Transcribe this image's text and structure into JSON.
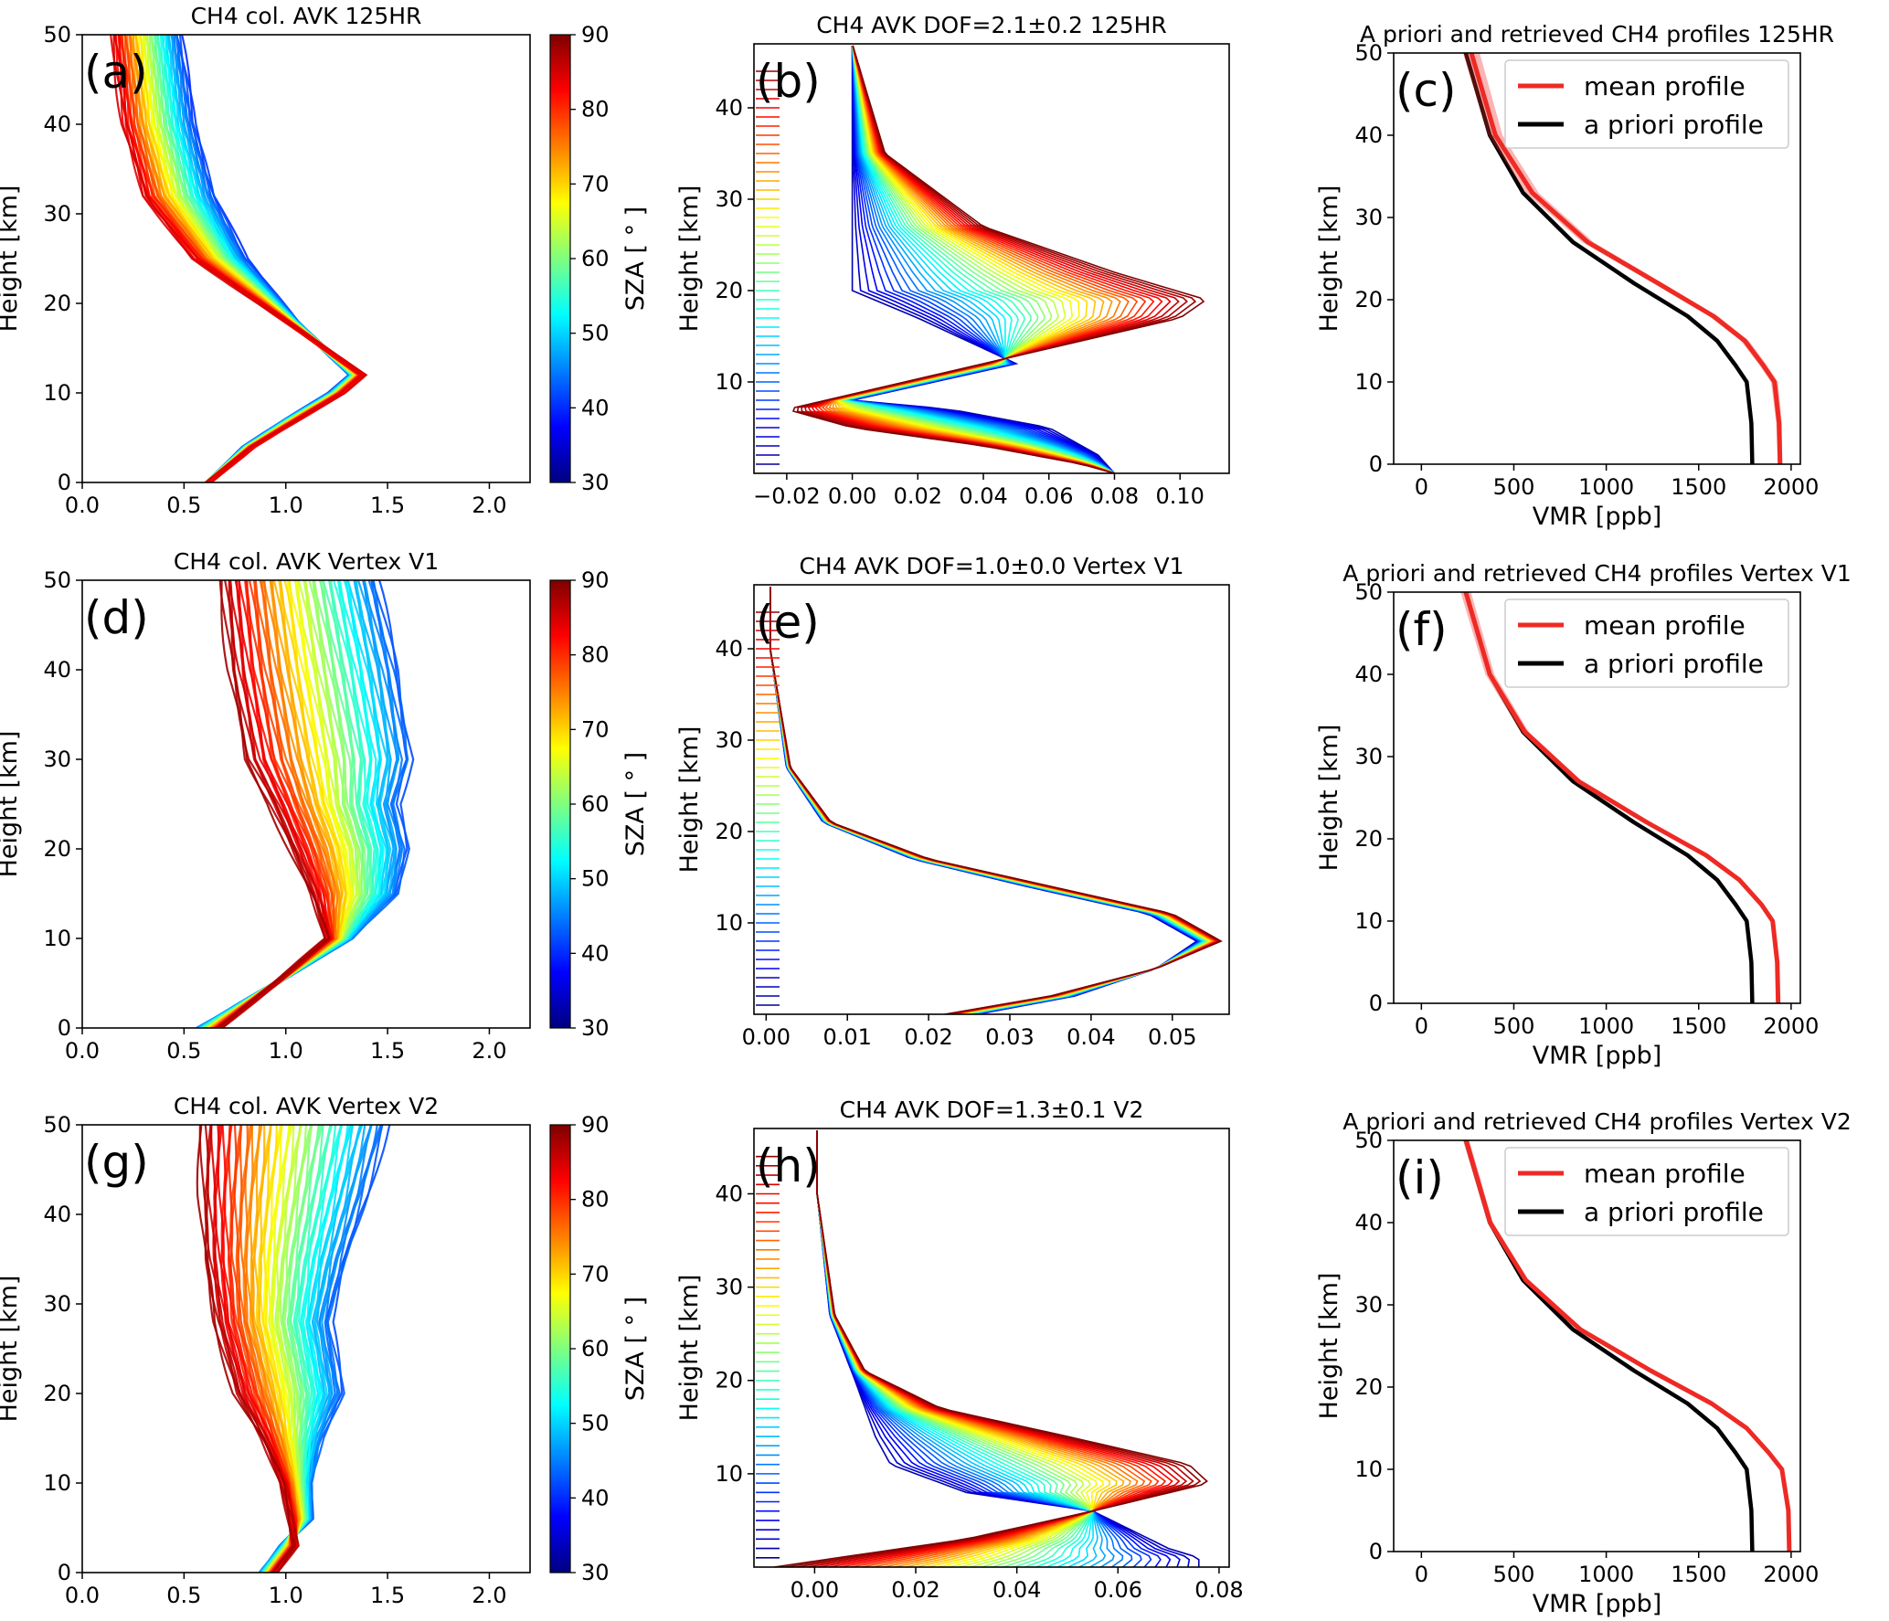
{
  "figure": {
    "colors": {
      "jet": [
        "#00007f",
        "#0000ff",
        "#007fff",
        "#00ffff",
        "#7fff7f",
        "#ffff00",
        "#ff7f00",
        "#ff0000",
        "#7f0000"
      ],
      "mean_profile": "#ee2a24",
      "apriori_profile": "#000000"
    },
    "colorbar": {
      "label": "SZA [ $^\\circ$ ]",
      "label_display": "SZA [ ° ]",
      "range": [
        30,
        90
      ],
      "ticks": [
        "30",
        "40",
        "50",
        "60",
        "70",
        "80",
        "90"
      ]
    },
    "panels": [
      {
        "id": "a",
        "letter": "(a)",
        "title": "CH4 col. AVK 125HR",
        "ylabel": "Height [km]",
        "xlabel": "",
        "colorbar": true
      },
      {
        "id": "b",
        "letter": "(b)",
        "title": "CH4 AVK DOF=2.1±0.2  125HR",
        "ylabel": "Height [km]",
        "xlabel": ""
      },
      {
        "id": "c",
        "letter": "(c)",
        "title": "A priori and retrieved CH4 profiles 125HR",
        "ylabel": "Height [km]",
        "xlabel": "VMR [ppb]"
      },
      {
        "id": "d",
        "letter": "(d)",
        "title": "CH4 col. AVK Vertex  V1",
        "ylabel": "Height [km]",
        "xlabel": "",
        "colorbar": true
      },
      {
        "id": "e",
        "letter": "(e)",
        "title": "CH4 AVK DOF=1.0±0.0  Vertex V1",
        "ylabel": "Height [km]",
        "xlabel": ""
      },
      {
        "id": "f",
        "letter": "(f)",
        "title": "A priori and retrieved CH4 profiles Vertex V1",
        "ylabel": "Height [km]",
        "xlabel": "VMR [ppb]"
      },
      {
        "id": "g",
        "letter": "(g)",
        "title": "CH4 col. AVK Vertex  V2",
        "ylabel": "Height [km]",
        "xlabel": "",
        "colorbar": true
      },
      {
        "id": "h",
        "letter": "(h)",
        "title": "CH4 AVK DOF=1.3±0.1 V2",
        "ylabel": "Height [km]",
        "xlabel": ""
      },
      {
        "id": "i",
        "letter": "(i)",
        "title": "A priori and retrieved CH4 profiles Vertex V2",
        "ylabel": "Height [km]",
        "xlabel": "VMR [ppb]"
      }
    ]
  },
  "chart_data": [
    {
      "id": "a",
      "type": "line",
      "title": "CH4 col. AVK 125HR",
      "xlabel": "",
      "ylabel": "Height [km]",
      "xlim": [
        0,
        2.2
      ],
      "ylim": [
        0,
        50
      ],
      "xticks": [
        0.0,
        0.5,
        1.0,
        1.5,
        2.0
      ],
      "xticklabels": [
        "0.0",
        "0.5",
        "1.0",
        "1.5",
        "2.0"
      ],
      "yticks": [
        0,
        10,
        20,
        30,
        40,
        50
      ],
      "yticklabels": [
        "0",
        "10",
        "20",
        "30",
        "40",
        "50"
      ],
      "color_by": "SZA",
      "sza_range": [
        40,
        85
      ],
      "series_low_sza": {
        "sza": 40,
        "x": [
          0.62,
          0.8,
          1.0,
          1.22,
          1.32,
          1.05,
          0.8,
          0.65,
          0.55,
          0.48
        ],
        "y": [
          0,
          4,
          7,
          10,
          12,
          18,
          25,
          32,
          40,
          50
        ]
      },
      "series_high_sza": {
        "sza": 85,
        "x": [
          0.62,
          0.84,
          1.06,
          1.28,
          1.38,
          1.0,
          0.55,
          0.3,
          0.2,
          0.15
        ],
        "y": [
          0,
          4,
          7,
          10,
          12,
          18,
          25,
          32,
          40,
          50
        ]
      }
    },
    {
      "id": "b",
      "type": "line",
      "title": "CH4 AVK DOF=2.1±0.2  125HR",
      "xlabel": "",
      "ylabel": "Height [km]",
      "xlim": [
        -0.03,
        0.115
      ],
      "ylim": [
        0,
        47
      ],
      "xticks": [
        -0.02,
        0.0,
        0.02,
        0.04,
        0.06,
        0.08,
        0.1
      ],
      "xticklabels": [
        "−0.02",
        "0.00",
        "0.02",
        "0.04",
        "0.06",
        "0.08",
        "0.10"
      ],
      "yticks": [
        10,
        20,
        30,
        40
      ],
      "yticklabels": [
        "10",
        "20",
        "30",
        "40"
      ],
      "color_by": "kernel layer",
      "kernel_outer": {
        "x": [
          0.08,
          0.07,
          0.04,
          0.0,
          -0.02,
          0.04,
          0.1,
          0.108,
          0.08,
          0.04,
          0.01,
          0.0
        ],
        "y": [
          0,
          1,
          3,
          5,
          7,
          12,
          17,
          19,
          22,
          27,
          35,
          47
        ]
      },
      "kernel_inner": {
        "x": [
          0.08,
          0.075,
          0.06,
          0.03,
          0.0,
          0.05,
          0.02,
          0.0,
          0.0,
          0.0
        ],
        "y": [
          0,
          2,
          5,
          7,
          8,
          12,
          17,
          20,
          30,
          47
        ]
      }
    },
    {
      "id": "c",
      "type": "line",
      "title": "A priori and retrieved CH4 profiles 125HR",
      "xlabel": "VMR [ppb]",
      "ylabel": "Height [km]",
      "xlim": [
        -150,
        2050
      ],
      "ylim": [
        0,
        50
      ],
      "xticks": [
        0,
        500,
        1000,
        1500,
        2000
      ],
      "xticklabels": [
        "0",
        "500",
        "1000",
        "1500",
        "2000"
      ],
      "yticks": [
        0,
        10,
        20,
        30,
        40,
        50
      ],
      "yticklabels": [
        "0",
        "10",
        "20",
        "30",
        "40",
        "50"
      ],
      "series": [
        {
          "name": "mean profile",
          "color": "#ee2a24",
          "x": [
            1940,
            1935,
            1910,
            1850,
            1750,
            1580,
            1280,
            900,
            600,
            400,
            270
          ],
          "y": [
            0,
            5,
            10,
            12,
            15,
            18,
            22,
            27,
            33,
            40,
            50
          ],
          "spread": 40
        },
        {
          "name": "a priori profile",
          "color": "#000000",
          "x": [
            1790,
            1785,
            1760,
            1700,
            1600,
            1440,
            1150,
            820,
            550,
            370,
            240
          ],
          "y": [
            0,
            5,
            10,
            12,
            15,
            18,
            22,
            27,
            33,
            40,
            50
          ]
        }
      ],
      "legend": "top-right"
    },
    {
      "id": "d",
      "type": "line",
      "title": "CH4 col. AVK Vertex  V1",
      "xlabel": "",
      "ylabel": "Height [km]",
      "xlim": [
        0,
        2.2
      ],
      "ylim": [
        0,
        50
      ],
      "xticks": [
        0.0,
        0.5,
        1.0,
        1.5,
        2.0
      ],
      "xticklabels": [
        "0.0",
        "0.5",
        "1.0",
        "1.5",
        "2.0"
      ],
      "yticks": [
        0,
        10,
        20,
        30,
        40,
        50
      ],
      "yticklabels": [
        "0",
        "10",
        "20",
        "30",
        "40",
        "50"
      ],
      "color_by": "SZA",
      "sza_range": [
        42,
        88
      ],
      "series_low_sza": {
        "sza": 42,
        "x": [
          0.57,
          0.95,
          1.32,
          1.55,
          1.6,
          1.55,
          1.62,
          1.55,
          1.45
        ],
        "y": [
          0,
          5,
          10,
          15,
          20,
          25,
          30,
          40,
          50
        ]
      },
      "series_high_sza": {
        "sza": 88,
        "x": [
          0.68,
          0.95,
          1.2,
          1.12,
          1.02,
          0.92,
          0.8,
          0.72,
          0.68
        ],
        "y": [
          0,
          5,
          10,
          15,
          20,
          25,
          30,
          40,
          50
        ]
      }
    },
    {
      "id": "e",
      "type": "line",
      "title": "CH4 AVK DOF=1.0±0.0  Vertex V1",
      "xlabel": "",
      "ylabel": "Height [km]",
      "xlim": [
        -0.0015,
        0.057
      ],
      "ylim": [
        0,
        47
      ],
      "xticks": [
        0.0,
        0.01,
        0.02,
        0.03,
        0.04,
        0.05
      ],
      "xticklabels": [
        "0.00",
        "0.01",
        "0.02",
        "0.03",
        "0.04",
        "0.05"
      ],
      "yticks": [
        10,
        20,
        30,
        40
      ],
      "yticklabels": [
        "10",
        "20",
        "30",
        "40"
      ],
      "color_by": "kernel layer",
      "kernel_outer": {
        "x": [
          0.022,
          0.035,
          0.048,
          0.056,
          0.05,
          0.035,
          0.02,
          0.008,
          0.003,
          0.0005
        ],
        "y": [
          0,
          2,
          5,
          8,
          11,
          14,
          17,
          21,
          27,
          40
        ]
      },
      "kernel_inner": {
        "x": [
          0.026,
          0.038,
          0.048,
          0.053,
          0.047,
          0.032,
          0.018,
          0.007,
          0.0025,
          0.0005
        ],
        "y": [
          0,
          2,
          5,
          8,
          11,
          14,
          17,
          21,
          27,
          40
        ]
      }
    },
    {
      "id": "f",
      "type": "line",
      "title": "A priori and retrieved CH4 profiles Vertex V1",
      "xlabel": "VMR [ppb]",
      "ylabel": "Height [km]",
      "xlim": [
        -150,
        2050
      ],
      "ylim": [
        0,
        50
      ],
      "xticks": [
        0,
        500,
        1000,
        1500,
        2000
      ],
      "xticklabels": [
        "0",
        "500",
        "1000",
        "1500",
        "2000"
      ],
      "yticks": [
        0,
        10,
        20,
        30,
        40,
        50
      ],
      "yticklabels": [
        "0",
        "10",
        "20",
        "30",
        "40",
        "50"
      ],
      "series": [
        {
          "name": "mean profile",
          "color": "#ee2a24",
          "x": [
            1930,
            1925,
            1900,
            1840,
            1720,
            1540,
            1220,
            850,
            560,
            370,
            240
          ],
          "y": [
            0,
            5,
            10,
            12,
            15,
            18,
            22,
            27,
            33,
            40,
            50
          ],
          "spread": 25
        },
        {
          "name": "a priori profile",
          "color": "#000000",
          "x": [
            1790,
            1785,
            1760,
            1700,
            1600,
            1440,
            1150,
            820,
            550,
            370,
            240
          ],
          "y": [
            0,
            5,
            10,
            12,
            15,
            18,
            22,
            27,
            33,
            40,
            50
          ]
        }
      ],
      "legend": "top-right"
    },
    {
      "id": "g",
      "type": "line",
      "title": "CH4 col. AVK Vertex  V2",
      "xlabel": "",
      "ylabel": "Height [km]",
      "xlim": [
        0,
        2.2
      ],
      "ylim": [
        0,
        50
      ],
      "xticks": [
        0.0,
        0.5,
        1.0,
        1.5,
        2.0
      ],
      "xticklabels": [
        "0.0",
        "0.5",
        "1.0",
        "1.5",
        "2.0"
      ],
      "yticks": [
        0,
        10,
        20,
        30,
        40,
        50
      ],
      "yticklabels": [
        "0",
        "10",
        "20",
        "30",
        "40",
        "50"
      ],
      "color_by": "SZA",
      "sza_range": [
        42,
        88
      ],
      "series_low_sza": {
        "sza": 42,
        "x": [
          0.88,
          0.98,
          1.12,
          1.12,
          1.18,
          1.28,
          1.22,
          1.3,
          1.4,
          1.5
        ],
        "y": [
          0,
          3,
          6,
          10,
          15,
          20,
          28,
          35,
          42,
          50
        ]
      },
      "series_high_sza": {
        "sza": 88,
        "x": [
          0.95,
          1.05,
          1.02,
          0.98,
          0.88,
          0.75,
          0.65,
          0.6,
          0.58,
          0.58
        ],
        "y": [
          0,
          3,
          6,
          10,
          15,
          20,
          28,
          35,
          42,
          50
        ]
      }
    },
    {
      "id": "h",
      "type": "line",
      "title": "CH4 AVK DOF=1.3±0.1 V2",
      "xlabel": "",
      "ylabel": "Height [km]",
      "xlim": [
        -0.012,
        0.082
      ],
      "ylim": [
        0,
        47
      ],
      "xticks": [
        0.0,
        0.02,
        0.04,
        0.06,
        0.08
      ],
      "xticklabels": [
        "0.00",
        "0.02",
        "0.04",
        "0.06",
        "0.08"
      ],
      "yticks": [
        10,
        20,
        30,
        40
      ],
      "yticklabels": [
        "10",
        "20",
        "30",
        "40"
      ],
      "color_by": "kernel layer",
      "kernel_outer": {
        "x": [
          -0.008,
          0.03,
          0.055,
          0.078,
          0.074,
          0.05,
          0.025,
          0.01,
          0.004,
          0.0005
        ],
        "y": [
          0,
          3,
          6,
          9,
          11,
          14,
          17,
          21,
          27,
          40
        ]
      },
      "kernel_inner": {
        "x": [
          0.076,
          0.07,
          0.055,
          0.03,
          0.015,
          0.012,
          0.008,
          0.003,
          0.0005
        ],
        "y": [
          1,
          2,
          6,
          8,
          11,
          14,
          20,
          27,
          40
        ]
      }
    },
    {
      "id": "i",
      "type": "line",
      "title": "A priori and retrieved CH4 profiles Vertex V2",
      "xlabel": "VMR [ppb]",
      "ylabel": "Height [km]",
      "xlim": [
        -150,
        2050
      ],
      "ylim": [
        0,
        50
      ],
      "xticks": [
        0,
        500,
        1000,
        1500,
        2000
      ],
      "xticklabels": [
        "0",
        "500",
        "1000",
        "1500",
        "2000"
      ],
      "yticks": [
        0,
        10,
        20,
        30,
        40,
        50
      ],
      "yticklabels": [
        "0",
        "10",
        "20",
        "30",
        "40",
        "50"
      ],
      "series": [
        {
          "name": "mean profile",
          "color": "#ee2a24",
          "x": [
            1990,
            1985,
            1950,
            1880,
            1760,
            1570,
            1240,
            860,
            565,
            372,
            242
          ],
          "y": [
            0,
            5,
            10,
            12,
            15,
            18,
            22,
            27,
            33,
            40,
            50
          ],
          "spread": 15
        },
        {
          "name": "a priori profile",
          "color": "#000000",
          "x": [
            1790,
            1785,
            1760,
            1700,
            1600,
            1440,
            1150,
            820,
            550,
            370,
            240
          ],
          "y": [
            0,
            5,
            10,
            12,
            15,
            18,
            22,
            27,
            33,
            40,
            50
          ]
        }
      ],
      "legend": "top-right"
    }
  ]
}
